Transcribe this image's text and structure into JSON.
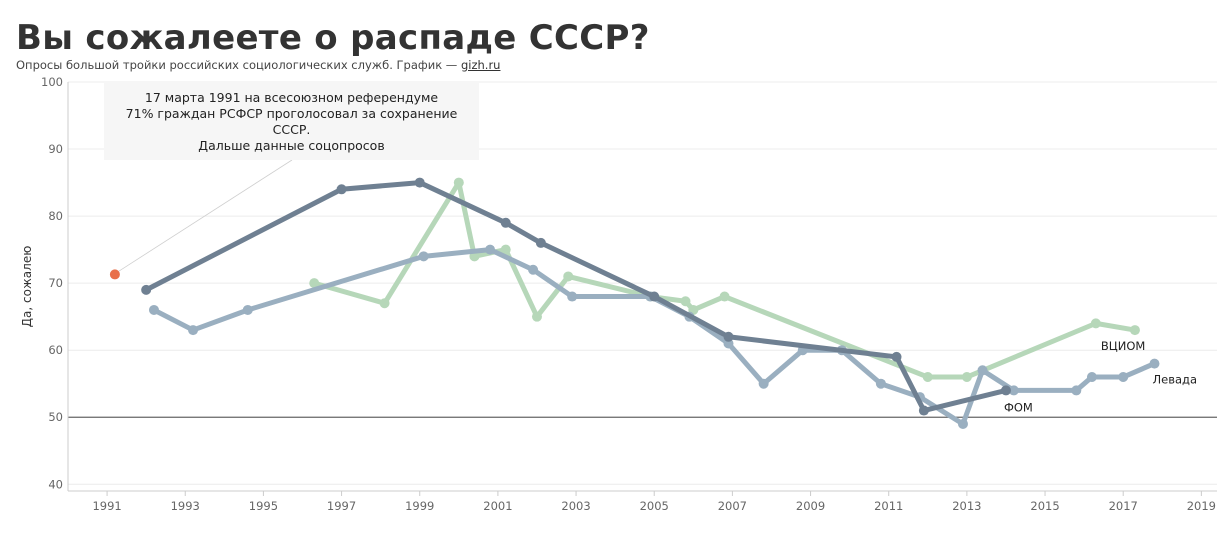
{
  "header": {
    "title": "Вы сожалеете о распаде СССР?",
    "subtitle": "Опросы большой тройки российских социологических служб. График — ",
    "source_link": "gizh.ru"
  },
  "annotation": {
    "lines": [
      "17 марта 1991 на всесоюзном референдуме",
      "71% граждан РСФСР проголосовал за сохранение",
      "СССР.",
      "Дальше данные соцопросов"
    ]
  },
  "chart_data": {
    "type": "line",
    "title": "Вы сожалеете о распаде СССР?",
    "ylabel": "Да, сожалею",
    "xlabel": "",
    "xlim": [
      1990,
      2019.4
    ],
    "ylim": [
      39,
      100
    ],
    "x_ticks": [
      1991,
      1993,
      1995,
      1997,
      1999,
      2001,
      2003,
      2005,
      2007,
      2009,
      2011,
      2013,
      2015,
      2017,
      2019
    ],
    "y_ticks": [
      40,
      50,
      60,
      70,
      80,
      90,
      100
    ],
    "reference_line": 50,
    "grid": true,
    "referendum_point": {
      "x": 1991.2,
      "y": 71.3,
      "color": "#e8704a"
    },
    "series": [
      {
        "name": "ВЦИОМ",
        "color": "#b6d7b9",
        "x": [
          1996.3,
          1998.1,
          2000.0,
          2000.4,
          2001.2,
          2002.0,
          2002.8,
          2004.9,
          2005.8,
          2006.0,
          2006.8,
          2012.0,
          2013.0,
          2016.3,
          2017.3
        ],
        "y": [
          70,
          67,
          85,
          74,
          75,
          65,
          71,
          68,
          67.3,
          66,
          68,
          56,
          56,
          64,
          63
        ]
      },
      {
        "name": "Левада",
        "color": "#9aafc0",
        "x": [
          1992.2,
          1993.2,
          1994.6,
          1999.1,
          2000.8,
          2001.9,
          2002.9,
          2004.9,
          2005.9,
          2006.9,
          2007.8,
          2008.8,
          2009.8,
          2010.8,
          2011.8,
          2012.9,
          2013.4,
          2014.2,
          2015.8,
          2016.2,
          2017.0,
          2017.8
        ],
        "y": [
          66,
          63,
          66,
          74,
          75,
          72,
          68,
          68,
          65,
          61,
          55,
          60,
          60,
          55,
          53,
          49,
          57,
          54,
          54,
          56,
          56,
          58
        ]
      },
      {
        "name": "ФОМ",
        "color": "#6f8092",
        "x": [
          1992.0,
          1997.0,
          1999.0,
          2001.2,
          2002.1,
          2005.0,
          2006.9,
          2011.2,
          2011.9,
          2014.0
        ],
        "y": [
          69,
          84,
          85,
          79,
          76,
          68,
          62,
          59,
          51,
          54
        ]
      }
    ]
  }
}
